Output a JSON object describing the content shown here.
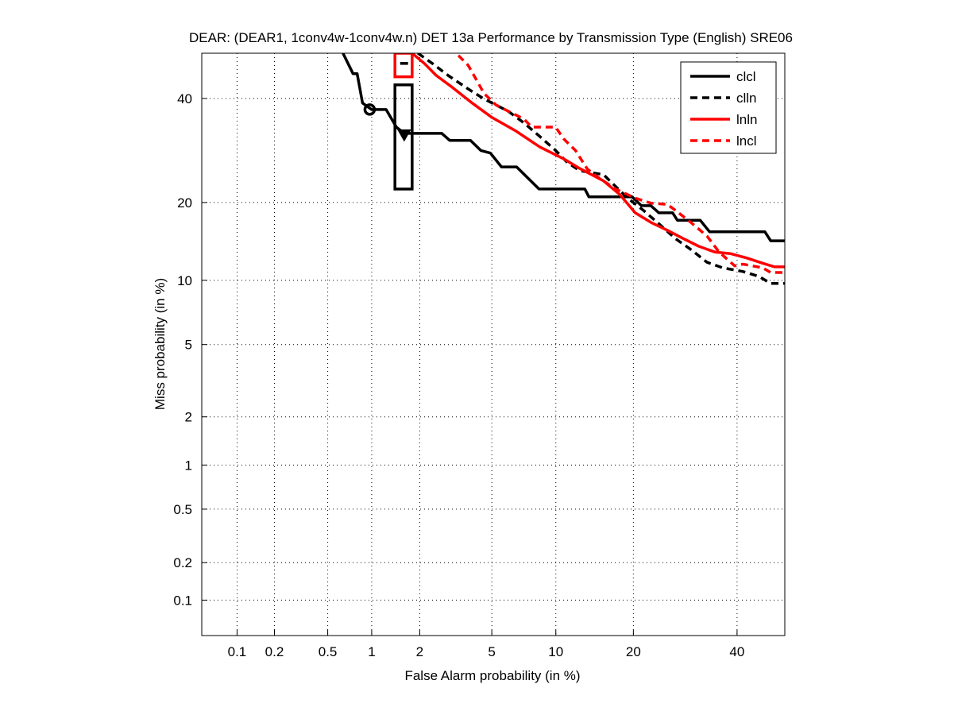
{
  "chart_data": {
    "type": "line",
    "scale": "probit",
    "title": "DEAR: (DEAR1, 1conv4w-1conv4w.n) DET 13a Performance by Transmission Type (English) SRE06",
    "xlabel": "False Alarm probability (in %)",
    "ylabel": "Miss probability (in %)",
    "xlim": [
      0.05,
      50.7
    ],
    "ylim": [
      0.05,
      50.1
    ],
    "xticks": [
      0.1,
      0.2,
      0.5,
      1,
      2,
      5,
      10,
      20,
      40
    ],
    "xtick_labels": [
      "0.1",
      "0.2",
      "0.5",
      "1",
      "2",
      "5",
      "10",
      "20",
      "40"
    ],
    "yticks": [
      0.1,
      0.2,
      0.5,
      1,
      2,
      5,
      10,
      20,
      40
    ],
    "ytick_labels": [
      "0.1",
      "0.2",
      "0.5",
      "1",
      "2",
      "5",
      "10",
      "20",
      "40"
    ],
    "grid": true,
    "legend_position": "top-right",
    "series": [
      {
        "name": "clcl",
        "color": "#000000",
        "dash": "solid",
        "x": [
          0.64,
          0.75,
          0.8,
          0.87,
          1.0,
          1.24,
          1.44,
          1.61,
          2.69,
          2.98,
          3.87,
          4.39,
          4.92,
          5.59,
          6.63,
          8.42,
          13.2,
          13.7,
          19.8,
          21.3,
          22.9,
          24.3,
          26.8,
          27.7,
          32.2,
          34.1,
          46.2,
          47.5,
          50.7
        ],
        "y": [
          50.1,
          45.5,
          45.5,
          39.0,
          37.6,
          37.6,
          33.9,
          32.6,
          32.6,
          31.2,
          31.2,
          29.2,
          28.7,
          26.1,
          26.1,
          22.2,
          22.2,
          20.9,
          20.9,
          19.5,
          19.5,
          18.4,
          18.4,
          17.3,
          17.3,
          15.7,
          15.7,
          14.5,
          14.5
        ]
      },
      {
        "name": "clln",
        "color": "#000000",
        "dash": "dashed",
        "x": [
          1.95,
          2.37,
          2.92,
          3.76,
          4.56,
          6.01,
          7.17,
          8.49,
          9.98,
          11.2,
          12.6,
          15.6,
          19.1,
          21.6,
          24.3,
          27.3,
          30.3,
          33.6,
          36.9,
          41.3,
          44.8,
          47.5,
          50.7
        ],
        "y": [
          50.1,
          47.8,
          45.1,
          42.1,
          39.9,
          37.3,
          34.8,
          32.0,
          29.2,
          26.9,
          25.4,
          24.7,
          20.7,
          18.8,
          16.8,
          14.8,
          13.4,
          11.9,
          11.3,
          10.9,
          10.4,
          9.7,
          9.7
        ]
      },
      {
        "name": "lnln",
        "color": "#ff0000",
        "dash": "solid",
        "x": [
          1.8,
          2.13,
          2.5,
          3.07,
          3.95,
          5.01,
          6.58,
          8.49,
          10.8,
          12.6,
          15.6,
          17.9,
          20.3,
          22.9,
          25.8,
          28.8,
          31.9,
          35.2,
          38.6,
          42.1,
          45.7,
          48.4,
          50.7
        ],
        "y": [
          50.1,
          47.8,
          45.1,
          42.5,
          39.0,
          35.9,
          33.1,
          29.9,
          27.6,
          25.8,
          23.6,
          21.3,
          18.4,
          17.0,
          15.9,
          14.8,
          13.8,
          13.1,
          12.9,
          12.4,
          11.8,
          11.4,
          11.4
        ]
      },
      {
        "name": "lncl",
        "color": "#ff0000",
        "dash": "dashed",
        "x": [
          3.33,
          3.76,
          4.15,
          4.56,
          5.25,
          6.01,
          7.17,
          7.81,
          9.98,
          10.8,
          12.1,
          13.5,
          15.1,
          17.3,
          20.3,
          22.9,
          25.8,
          27.3,
          30.3,
          33.6,
          36.1,
          39.5,
          41.3,
          45.7,
          47.5,
          50.7
        ],
        "y": [
          49.6,
          47.4,
          44.2,
          41.1,
          38.6,
          37.3,
          35.6,
          33.9,
          33.9,
          31.5,
          29.2,
          25.7,
          24.0,
          22.2,
          20.7,
          19.9,
          19.7,
          18.8,
          17.0,
          15.1,
          13.1,
          11.5,
          11.7,
          11.3,
          10.8,
          10.8
        ]
      }
    ],
    "markers": [
      {
        "name": "min-dcf-circle",
        "shape": "circle",
        "series": "clcl",
        "x": 0.97,
        "y": 37.6,
        "color": "#000000"
      },
      {
        "name": "actual-dcf-triangle",
        "shape": "triangle-down",
        "series": "clcl",
        "x": 1.61,
        "y": 32.2,
        "color": "#000000"
      }
    ],
    "boxes": [
      {
        "name": "clcl-confidence-box",
        "x0": 1.41,
        "x1": 1.8,
        "y0": 22.2,
        "y1": 43.0,
        "color": "#000000"
      },
      {
        "name": "lnln-confidence-box",
        "x0": 1.41,
        "x1": 1.8,
        "y0": 44.8,
        "y1": 50.1,
        "color": "#ff0000"
      }
    ],
    "box_inner_marks": [
      {
        "name": "clln-dash-mark",
        "x0": 1.52,
        "x1": 1.7,
        "y": 47.8,
        "color": "#000000"
      }
    ]
  }
}
